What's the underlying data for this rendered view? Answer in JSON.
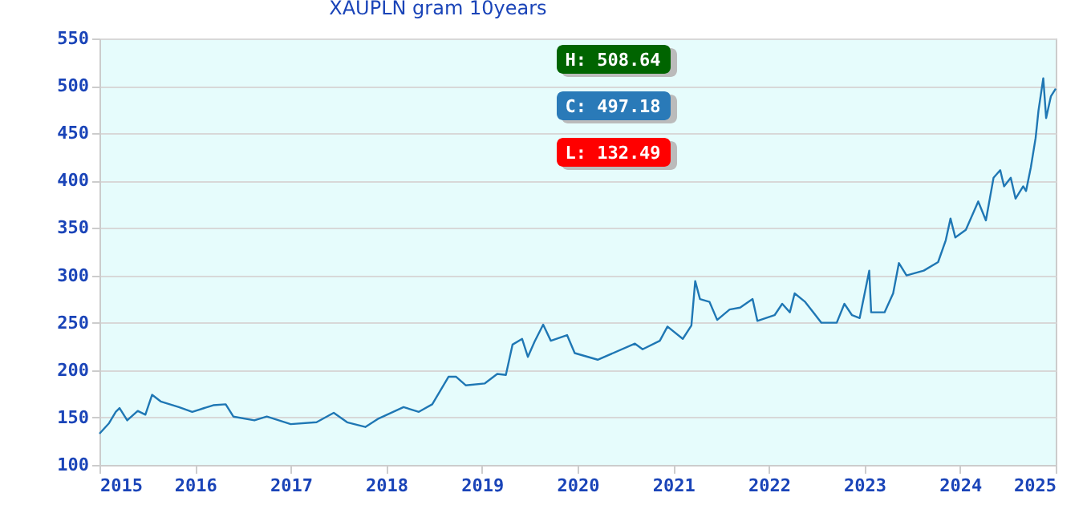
{
  "chart_data": {
    "type": "line",
    "title": "XAUPLN gram  10years",
    "xlim": [
      2015,
      2025
    ],
    "xticks": [
      2015,
      2016,
      2017,
      2018,
      2019,
      2020,
      2021,
      2022,
      2023,
      2024,
      2025
    ],
    "ylim": [
      100,
      550
    ],
    "yticks": [
      100,
      150,
      200,
      250,
      300,
      350,
      400,
      450,
      500,
      550
    ],
    "grid": "y",
    "annotations": [
      "H: 508.64",
      "C: 497.18",
      "L: 132.49"
    ],
    "series": [
      {
        "color": "#1f77b4",
        "x": [
          2015.0,
          2015.1,
          2015.17,
          2015.21,
          2015.29,
          2015.4,
          2015.48,
          2015.55,
          2015.64,
          2015.83,
          2015.97,
          2016.19,
          2016.32,
          2016.4,
          2016.62,
          2016.75,
          2017.0,
          2017.27,
          2017.45,
          2017.59,
          2017.78,
          2017.92,
          2018.18,
          2018.34,
          2018.48,
          2018.65,
          2018.73,
          2018.83,
          2019.03,
          2019.16,
          2019.25,
          2019.32,
          2019.42,
          2019.48,
          2019.55,
          2019.64,
          2019.72,
          2019.89,
          2019.97,
          2020.21,
          2020.6,
          2020.68,
          2020.86,
          2020.94,
          2021.1,
          2021.19,
          2021.23,
          2021.28,
          2021.38,
          2021.46,
          2021.59,
          2021.7,
          2021.83,
          2021.88,
          2022.06,
          2022.14,
          2022.22,
          2022.27,
          2022.38,
          2022.55,
          2022.71,
          2022.79,
          2022.87,
          2022.95,
          2023.05,
          2023.07,
          2023.21,
          2023.3,
          2023.36,
          2023.44,
          2023.62,
          2023.77,
          2023.85,
          2023.9,
          2023.95,
          2024.06,
          2024.19,
          2024.27,
          2024.35,
          2024.42,
          2024.46,
          2024.53,
          2024.58,
          2024.66,
          2024.69,
          2024.74,
          2024.79,
          2024.82,
          2024.87,
          2024.9,
          2024.95,
          2025.0
        ],
        "values": [
          133,
          144,
          156,
          160,
          147,
          157,
          153,
          174,
          167,
          161,
          156,
          163,
          164,
          151,
          147,
          151,
          143,
          145,
          155,
          145,
          140,
          149,
          161,
          156,
          164,
          193,
          193,
          184,
          186,
          196,
          195,
          227,
          233,
          214,
          230,
          248,
          231,
          237,
          218,
          211,
          228,
          222,
          231,
          246,
          233,
          247,
          294,
          275,
          272,
          253,
          264,
          266,
          275,
          252,
          258,
          270,
          261,
          281,
          272,
          250,
          250,
          270,
          258,
          255,
          305,
          261,
          261,
          281,
          313,
          300,
          305,
          314,
          337,
          360,
          340,
          348,
          378,
          358,
          403,
          411,
          394,
          403,
          381,
          394,
          389,
          414,
          445,
          474,
          508,
          466,
          489,
          497
        ]
      }
    ]
  }
}
